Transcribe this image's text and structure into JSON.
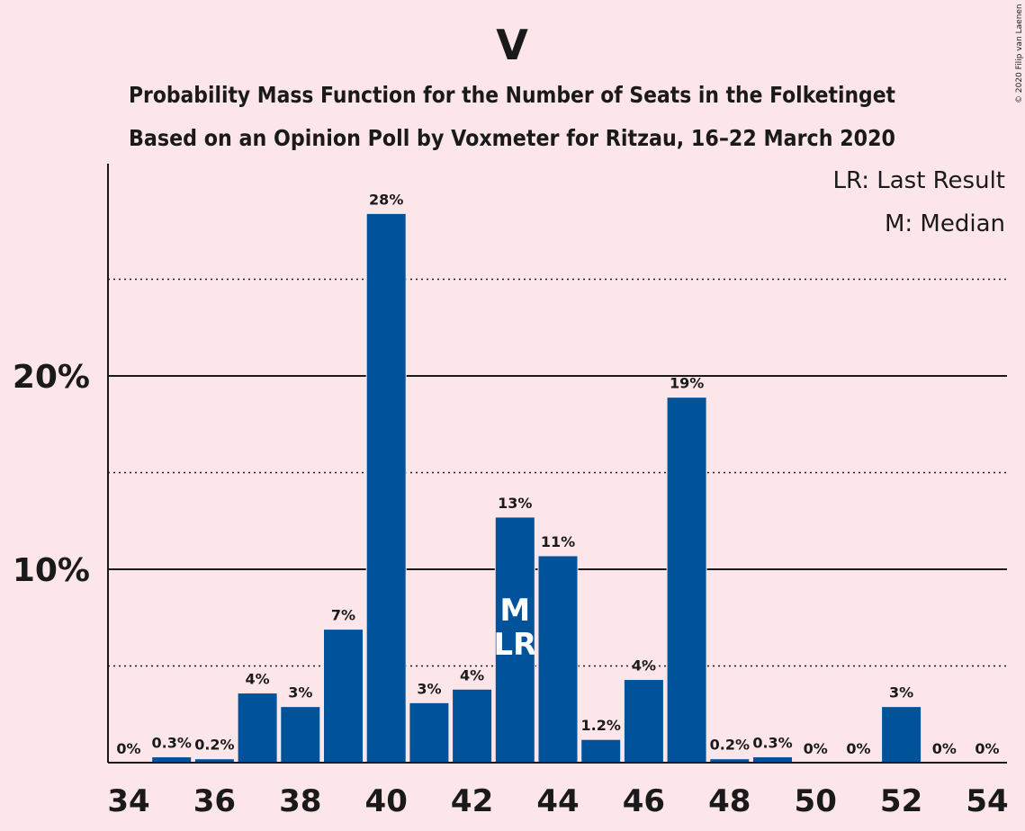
{
  "copyright": "© 2020 Filip van Laenen",
  "chart_data": {
    "type": "bar",
    "title": "V",
    "subtitle_line1": "Probability Mass Function for the Number of Seats in the Folketinget",
    "subtitle_line2": "Based on an Opinion Poll by Voxmeter for Ritzau, 16–22 March 2020",
    "legend": {
      "lr": "LR: Last Result",
      "m": "M: Median",
      "placement": "top-right"
    },
    "colors": {
      "bar": "#00529b",
      "background": "#fde6ea",
      "text": "#1a1a1a"
    },
    "x": [
      34,
      35,
      36,
      37,
      38,
      39,
      40,
      41,
      42,
      43,
      44,
      45,
      46,
      47,
      48,
      49,
      50,
      51,
      52,
      53,
      54
    ],
    "values": [
      0,
      0.3,
      0.2,
      3.6,
      2.9,
      6.9,
      28.4,
      3.1,
      3.8,
      12.7,
      10.7,
      1.2,
      4.3,
      18.9,
      0.2,
      0.3,
      0,
      0,
      2.9,
      0,
      0
    ],
    "data_labels": [
      "0%",
      "0.3%",
      "0.2%",
      "4%",
      "3%",
      "7%",
      "28%",
      "3%",
      "4%",
      "13%",
      "11%",
      "1.2%",
      "4%",
      "19%",
      "0.2%",
      "0.3%",
      "0%",
      "0%",
      "3%",
      "0%",
      "0%"
    ],
    "x_ticks": [
      34,
      36,
      38,
      40,
      42,
      44,
      46,
      48,
      50,
      52,
      54
    ],
    "y_ticks": [
      {
        "value": 10,
        "label": "10%"
      },
      {
        "value": 20,
        "label": "20%"
      }
    ],
    "y_minor_gridlines": [
      5,
      15,
      25
    ],
    "ylim": [
      0,
      31
    ],
    "markers": [
      {
        "x": 43,
        "labels": [
          "M",
          "LR"
        ]
      }
    ]
  }
}
